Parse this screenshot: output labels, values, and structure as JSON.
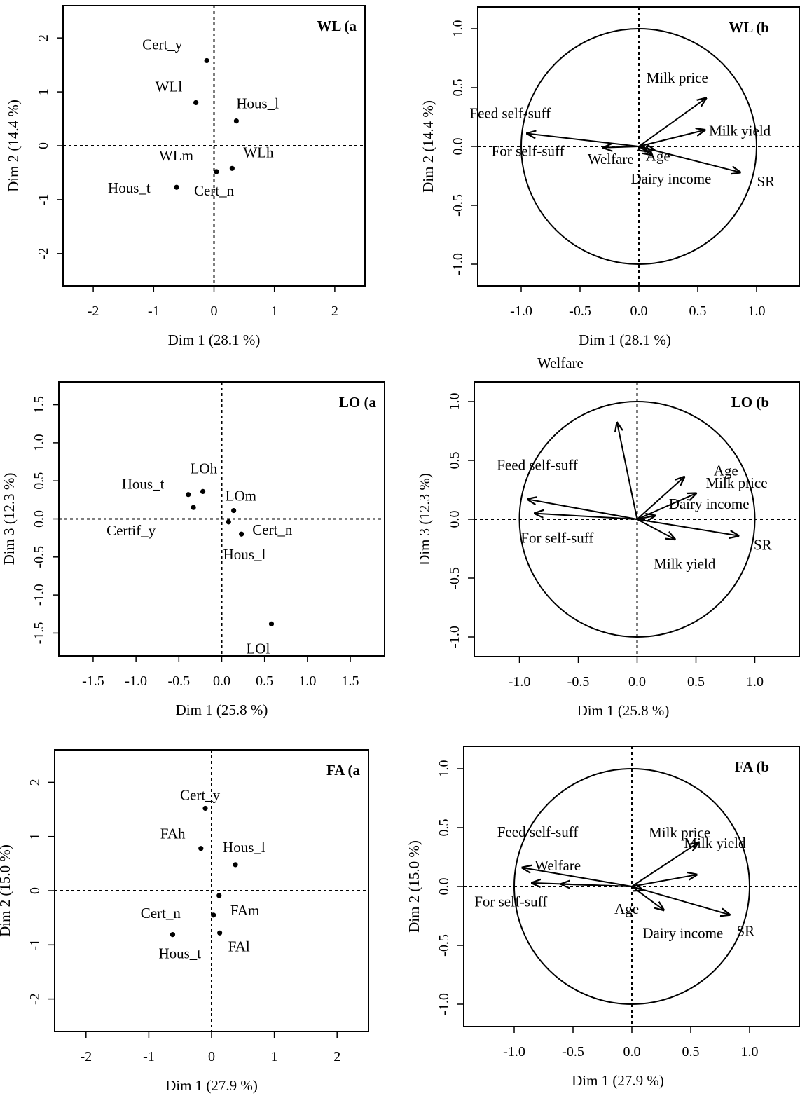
{
  "chart_data": [
    {
      "type": "scatter",
      "title": "WL (a",
      "xlabel": "Dim 1 (28.1 %)",
      "ylabel": "Dim 2 (14.4 %)",
      "xlim": [
        -2.5,
        2.5
      ],
      "ylim": [
        -2.6,
        2.6
      ],
      "xticks": [
        -2,
        -1,
        0,
        1,
        2
      ],
      "yticks": [
        -2,
        -1,
        0,
        1,
        2
      ],
      "points": [
        {
          "label": "Cert_y",
          "x": -0.12,
          "y": 1.58
        },
        {
          "label": "WLl",
          "x": -0.3,
          "y": 0.8
        },
        {
          "label": "Hous_l",
          "x": 0.37,
          "y": 0.46
        },
        {
          "label": "WLm",
          "x": 0.04,
          "y": -0.48
        },
        {
          "label": "WLh",
          "x": 0.3,
          "y": -0.42
        },
        {
          "label": "Hous_t",
          "x": -0.62,
          "y": -0.77
        },
        {
          "label": "Cert_n",
          "x": 0.04,
          "y": -0.48
        }
      ]
    },
    {
      "type": "vector",
      "title": "WL (b",
      "xlabel": "Dim 1 (28.1 %)",
      "ylabel": "Dim 2 (14.4 %)",
      "xlim": [
        -1.3,
        1.3
      ],
      "ylim": [
        -1.15,
        1.15
      ],
      "xticks": [
        -1.0,
        -0.5,
        0.0,
        0.5,
        1.0
      ],
      "yticks": [
        -1.0,
        -0.5,
        0.0,
        0.5,
        1.0
      ],
      "vectors": [
        {
          "label": "Milk price",
          "x": 0.57,
          "y": 0.41
        },
        {
          "label": "Milk yield",
          "x": 0.56,
          "y": 0.14
        },
        {
          "label": "Feed self-suff",
          "x": -0.95,
          "y": 0.11
        },
        {
          "label": "For self-suff",
          "x": -0.3,
          "y": -0.01
        },
        {
          "label": "Welfare",
          "x": 0.13,
          "y": -0.03
        },
        {
          "label": "Age",
          "x": 0.07,
          "y": -0.04
        },
        {
          "label": "Dairy income",
          "x": 0.11,
          "y": -0.07
        },
        {
          "label": "SR",
          "x": 0.86,
          "y": -0.22
        }
      ]
    },
    {
      "type": "scatter",
      "title": "LO (a",
      "xlabel": "Dim 1 (25.8 %)",
      "ylabel": "Dim 3 (12.3 %)",
      "xlim": [
        -1.9,
        1.9
      ],
      "ylim": [
        -1.8,
        1.8
      ],
      "xticks": [
        -1.5,
        -1.0,
        -0.5,
        0.0,
        0.5,
        1.0,
        1.5
      ],
      "yticks": [
        -1.5,
        -1.0,
        -0.5,
        0.0,
        0.5,
        1.0,
        1.5
      ],
      "points": [
        {
          "label": "LOh",
          "x": -0.22,
          "y": 0.36
        },
        {
          "label": "Hous_t",
          "x": -0.39,
          "y": 0.32
        },
        {
          "label": "Certif_y",
          "x": -0.33,
          "y": 0.15
        },
        {
          "label": "LOm",
          "x": 0.14,
          "y": 0.11
        },
        {
          "label": "Cert_n",
          "x": 0.08,
          "y": -0.04
        },
        {
          "label": "Hous_l",
          "x": 0.23,
          "y": -0.2
        },
        {
          "label": "LOl",
          "x": 0.58,
          "y": -1.38
        }
      ]
    },
    {
      "type": "vector",
      "title": "LO (b",
      "xlabel": "Dim 1 (25.8 %)",
      "ylabel": "Dim 3 (12.3 %)",
      "xlim": [
        -1.3,
        1.3
      ],
      "ylim": [
        -1.15,
        1.15
      ],
      "xticks": [
        -1.0,
        -0.5,
        0.0,
        0.5,
        1.0
      ],
      "yticks": [
        -1.0,
        -0.5,
        0.0,
        0.5,
        1.0
      ],
      "vectors": [
        {
          "label": "Welfare",
          "x": -0.17,
          "y": 0.82
        },
        {
          "label": "Age",
          "x": 0.4,
          "y": 0.36
        },
        {
          "label": "Milk price",
          "x": 0.5,
          "y": 0.22
        },
        {
          "label": "Dairy income",
          "x": 0.15,
          "y": 0.03
        },
        {
          "label": "Feed self-suff",
          "x": -0.93,
          "y": 0.17
        },
        {
          "label": "For self-suff",
          "x": -0.87,
          "y": 0.05
        },
        {
          "label": "Milk yield",
          "x": 0.32,
          "y": -0.17
        },
        {
          "label": "SR",
          "x": 0.86,
          "y": -0.14
        }
      ]
    },
    {
      "type": "scatter",
      "title": "FA (a",
      "xlabel": "Dim 1 (27.9 %)",
      "ylabel": "Dim 2 (15.0 %)",
      "xlim": [
        -2.5,
        2.5
      ],
      "ylim": [
        -2.6,
        2.6
      ],
      "xticks": [
        -2,
        -1,
        0,
        1,
        2
      ],
      "yticks": [
        -2,
        -1,
        0,
        1,
        2
      ],
      "points": [
        {
          "label": "Cert_y",
          "x": -0.1,
          "y": 1.52
        },
        {
          "label": "FAh",
          "x": -0.17,
          "y": 0.78
        },
        {
          "label": "Hous_l",
          "x": 0.38,
          "y": 0.48
        },
        {
          "label": "FAm",
          "x": 0.12,
          "y": -0.09
        },
        {
          "label": "Cert_n",
          "x": 0.03,
          "y": -0.45
        },
        {
          "label": "FAl",
          "x": 0.13,
          "y": -0.78
        },
        {
          "label": "Hous_t",
          "x": -0.62,
          "y": -0.81
        }
      ]
    },
    {
      "type": "vector",
      "title": "FA (b",
      "xlabel": "Dim 1 (27.9 %)",
      "ylabel": "Dim 2 (15.0 %)",
      "xlim": [
        -1.3,
        1.3
      ],
      "ylim": [
        -1.15,
        1.15
      ],
      "xticks": [
        -1.0,
        -0.5,
        0.0,
        0.5,
        1.0
      ],
      "yticks": [
        -1.0,
        -0.5,
        0.0,
        0.5,
        1.0
      ],
      "vectors": [
        {
          "label": "Milk price",
          "x": 0.56,
          "y": 0.37
        },
        {
          "label": "Milk yield",
          "x": 0.55,
          "y": 0.1
        },
        {
          "label": "Feed self-suff",
          "x": -0.93,
          "y": 0.16
        },
        {
          "label": "Welfare",
          "x": -0.85,
          "y": 0.03
        },
        {
          "label": "For self-suff",
          "x": -0.6,
          "y": 0.02
        },
        {
          "label": "Age",
          "x": 0.09,
          "y": -0.03
        },
        {
          "label": "Dairy income",
          "x": 0.27,
          "y": -0.2
        },
        {
          "label": "SR",
          "x": 0.83,
          "y": -0.24
        }
      ]
    }
  ]
}
